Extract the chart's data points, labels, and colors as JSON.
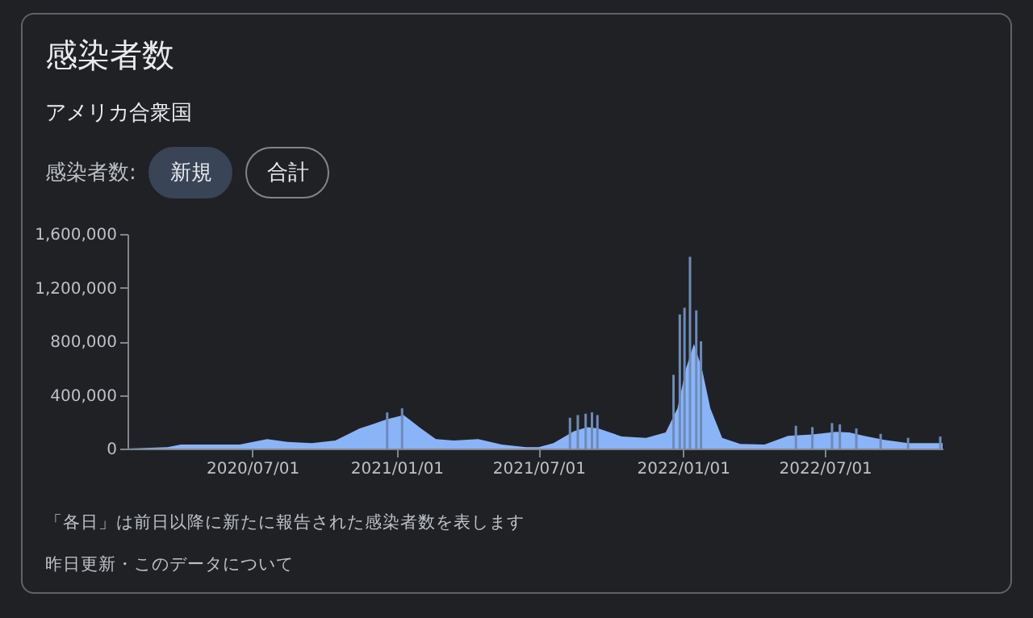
{
  "chart_data": {
    "type": "area",
    "title": "感染者数",
    "subtitle": "アメリカ合衆国",
    "annotations": [
      "感染者数:",
      "新規",
      "合計",
      "「各日」は前日以降に新たに報告された感染者数を表します",
      "昨日更新・このデータについて"
    ],
    "series": [
      {
        "color": "#8ab4f8",
        "x": [
          "2020-01-24",
          "2020-03-15",
          "2020-04-01",
          "2020-04-15",
          "2020-05-15",
          "2020-06-15",
          "2020-07-20",
          "2020-08-15",
          "2020-09-15",
          "2020-10-15",
          "2020-11-15",
          "2020-12-01",
          "2020-12-20",
          "2021-01-10",
          "2021-02-01",
          "2021-02-20",
          "2021-03-15",
          "2021-04-15",
          "2021-05-15",
          "2021-06-15",
          "2021-07-01",
          "2021-07-20",
          "2021-08-15",
          "2021-09-01",
          "2021-09-15",
          "2021-10-15",
          "2021-11-15",
          "2021-12-10",
          "2021-12-25",
          "2022-01-05",
          "2022-01-15",
          "2022-01-25",
          "2022-02-05",
          "2022-02-20",
          "2022-03-15",
          "2022-04-15",
          "2022-05-15",
          "2022-06-15",
          "2022-07-15",
          "2022-08-01",
          "2022-08-20",
          "2022-09-15",
          "2022-10-15",
          "2022-11-28"
        ],
        "values": [
          0,
          10000,
          30000,
          30000,
          30000,
          30000,
          70000,
          50000,
          40000,
          60000,
          150000,
          180000,
          220000,
          250000,
          150000,
          70000,
          60000,
          70000,
          30000,
          10000,
          10000,
          40000,
          130000,
          160000,
          150000,
          90000,
          80000,
          120000,
          300000,
          600000,
          780000,
          600000,
          300000,
          80000,
          35000,
          30000,
          95000,
          105000,
          125000,
          120000,
          95000,
          65000,
          40000,
          40000
        ]
      },
      {
        "type": "bar",
        "color": "#6d8bb8",
        "x": [
          "2020-12-20",
          "2021-01-08",
          "2021-08-10",
          "2021-08-20",
          "2021-08-30",
          "2021-09-07",
          "2021-09-14",
          "2021-12-20",
          "2021-12-28",
          "2022-01-03",
          "2022-01-10",
          "2022-01-18",
          "2022-01-24",
          "2022-05-25",
          "2022-06-15",
          "2022-07-10",
          "2022-07-20",
          "2022-08-10",
          "2022-09-10",
          "2022-10-15",
          "2022-11-25"
        ],
        "values": [
          270000,
          300000,
          230000,
          250000,
          260000,
          270000,
          250000,
          550000,
          1000000,
          1050000,
          1430000,
          1030000,
          800000,
          170000,
          160000,
          190000,
          180000,
          150000,
          110000,
          80000,
          90000
        ]
      }
    ],
    "xlim": [
      "2020-01-24",
      "2022-11-28"
    ],
    "xticks": [
      {
        "value": "2020-07-01",
        "label": "2020/07/01"
      },
      {
        "value": "2021-01-01",
        "label": "2021/01/01"
      },
      {
        "value": "2021-07-01",
        "label": "2021/07/01"
      },
      {
        "value": "2022-01-01",
        "label": "2022/01/01"
      },
      {
        "value": "2022-07-01",
        "label": "2022/07/01"
      }
    ],
    "ylim": [
      0,
      1600000
    ],
    "yticks": [
      {
        "value": 0,
        "label": "0"
      },
      {
        "value": 400000,
        "label": "400,000"
      },
      {
        "value": 800000,
        "label": "800,000"
      },
      {
        "value": 1200000,
        "label": "1,200,000"
      },
      {
        "value": 1600000,
        "label": "1,600,000"
      }
    ]
  }
}
